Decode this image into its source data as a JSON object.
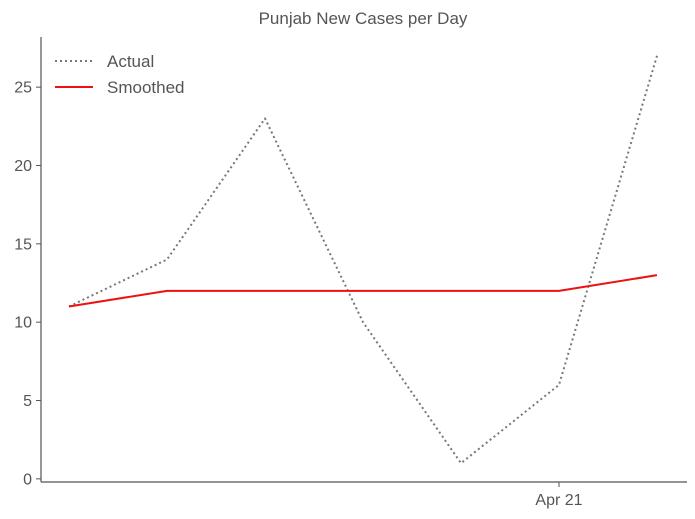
{
  "chart_data": {
    "type": "line",
    "title": "Punjab New Cases per Day",
    "xlabel": "",
    "ylabel": "",
    "x": [
      "",
      "",
      "",
      "",
      "",
      "Apr 21",
      ""
    ],
    "x_tick_labels": [
      "Apr 21"
    ],
    "series": [
      {
        "name": "Actual",
        "values": [
          11,
          14,
          23,
          10,
          1,
          6,
          27
        ],
        "color": "#777777",
        "style": "dotted"
      },
      {
        "name": "Smoothed",
        "values": [
          11,
          12,
          12,
          12,
          12,
          12,
          13
        ],
        "color": "#ee1111",
        "style": "solid"
      }
    ],
    "y_ticks": [
      0,
      5,
      10,
      15,
      20,
      25
    ],
    "ylim": [
      -0.2,
      28.2
    ],
    "grid": false,
    "legend_position": "top-left"
  }
}
